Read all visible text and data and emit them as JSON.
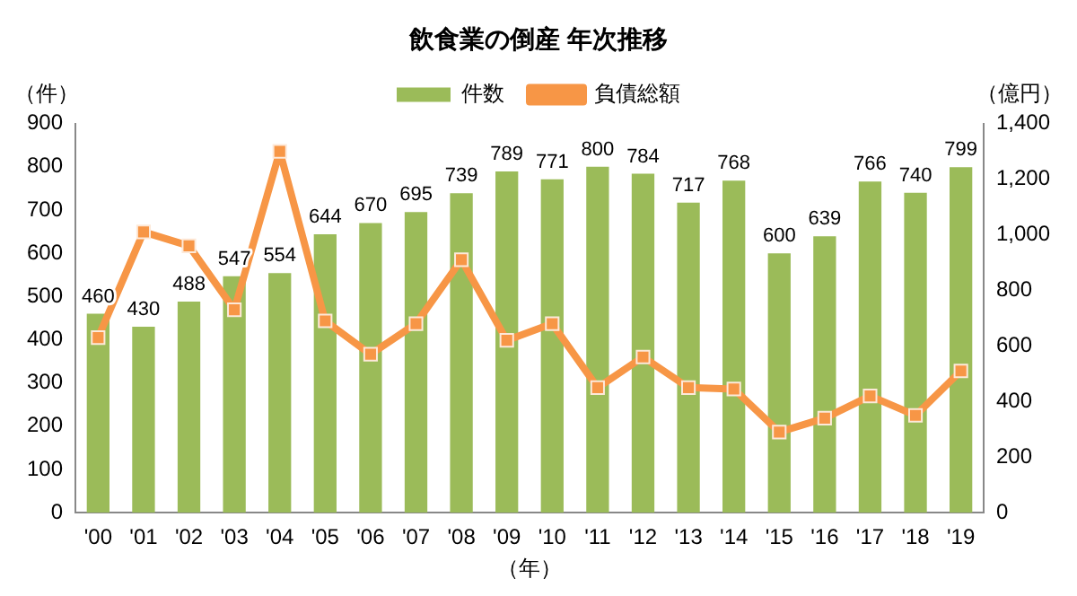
{
  "chart_data": {
    "type": "bar",
    "title": "飲食業の倒産 年次推移",
    "xlabel": "（年）",
    "ylabel": "（件）",
    "y2label": "（億円）",
    "categories": [
      "'00",
      "'01",
      "'02",
      "'03",
      "'04",
      "'05",
      "'06",
      "'07",
      "'08",
      "'09",
      "'10",
      "'11",
      "'12",
      "'13",
      "'14",
      "'15",
      "'16",
      "'17",
      "'18",
      "'19"
    ],
    "series": [
      {
        "name": "件数",
        "color": "#9bbb59",
        "values": [
          460,
          430,
          488,
          547,
          554,
          644,
          670,
          695,
          739,
          789,
          771,
          800,
          784,
          717,
          768,
          600,
          639,
          766,
          740,
          799
        ],
        "value_labels": [
          "460",
          "430",
          "488",
          "547",
          "554",
          "644",
          "670",
          "695",
          "739",
          "789",
          "771",
          "800",
          "784",
          "717",
          "768",
          "600",
          "639",
          "766",
          "740",
          "799"
        ]
      },
      {
        "name": "負債総額",
        "type": "line",
        "axis": "y2",
        "color": "#f79646",
        "marker": "square",
        "line_style": "solid",
        "values": [
          630,
          1010,
          960,
          730,
          1300,
          690,
          570,
          680,
          910,
          620,
          680,
          450,
          560,
          450,
          445,
          290,
          340,
          420,
          350,
          510
        ]
      }
    ],
    "ylim": [
      0,
      900
    ],
    "yticks": [
      0,
      100,
      200,
      300,
      400,
      500,
      600,
      700,
      800,
      900
    ],
    "y2lim": [
      0,
      1400
    ],
    "y2ticks": [
      {
        "value": 0,
        "label": "0"
      },
      {
        "value": 200,
        "label": "200"
      },
      {
        "value": 400,
        "label": "400"
      },
      {
        "value": 600,
        "label": "600"
      },
      {
        "value": 800,
        "label": "800"
      },
      {
        "value": 1000,
        "label": "1,000"
      },
      {
        "value": 1200,
        "label": "1,200"
      },
      {
        "value": 1400,
        "label": "1,400"
      }
    ],
    "grid": false,
    "legend": "top"
  }
}
